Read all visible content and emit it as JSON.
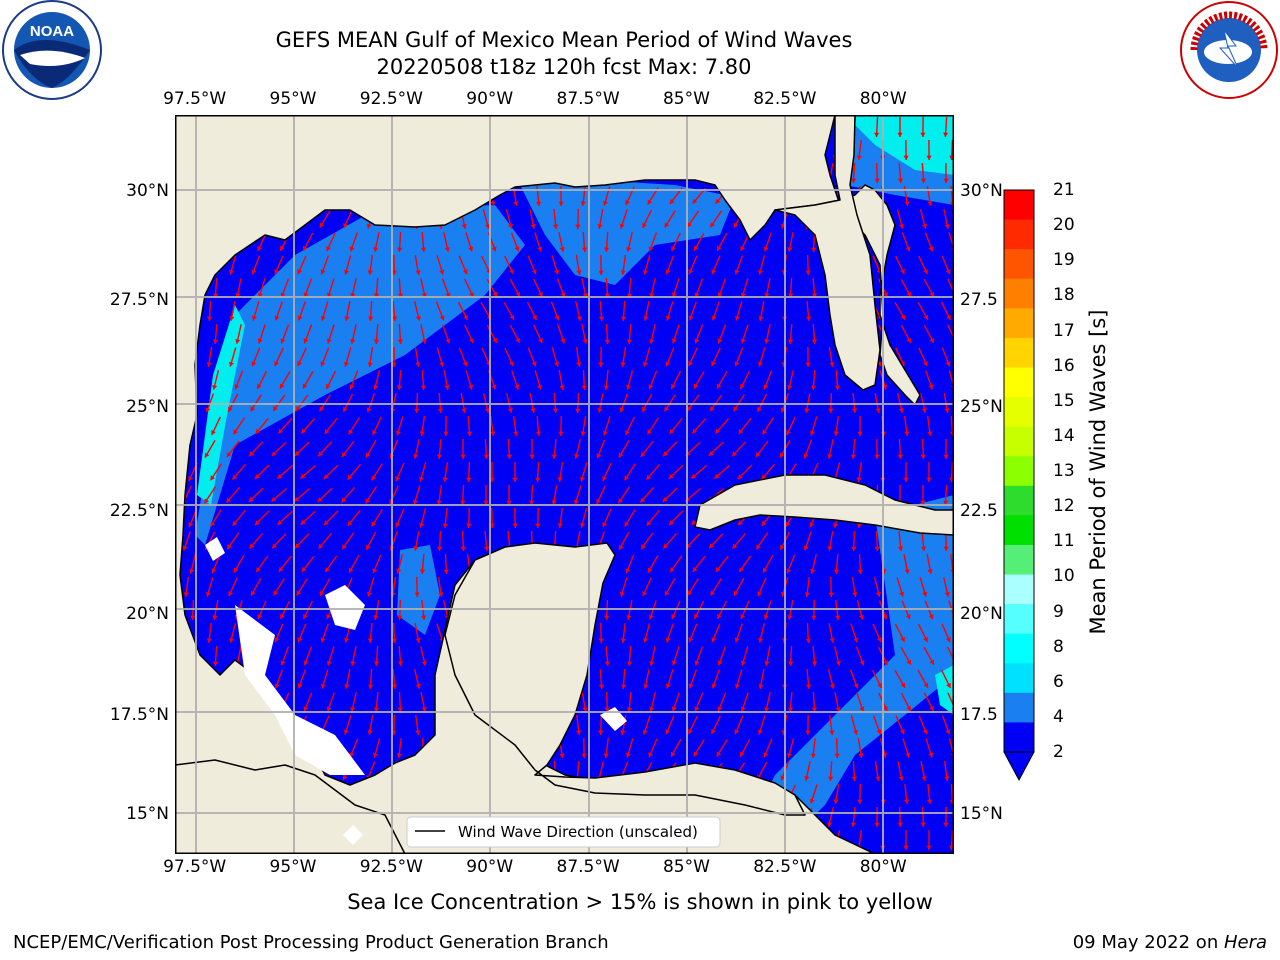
{
  "title": {
    "line1": "GEFS MEAN Gulf of Mexico Mean Period of Wind Waves",
    "line2": "20220508 t18z 120h fcst   Max: 7.80"
  },
  "map": {
    "lon_labels": [
      "97.5°W",
      "95°W",
      "92.5°W",
      "90°W",
      "87.5°W",
      "85°W",
      "82.5°W",
      "80°W"
    ],
    "lon_values": [
      -97.5,
      -95,
      -92.5,
      -90,
      -87.5,
      -85,
      -82.5,
      -80
    ],
    "lat_labels_left": [
      "30°N",
      "27.5°N",
      "25°N",
      "22.5°N",
      "20°N",
      "17.5°N",
      "15°N"
    ],
    "lat_labels_right": [
      "30°N",
      "27.5",
      "25°N",
      "22.5",
      "20°N",
      "17.5",
      "15°N"
    ],
    "lat_values": [
      30,
      27.5,
      25,
      22.5,
      20,
      17.5,
      15
    ],
    "extent": {
      "lon_min": -98,
      "lon_max": -78.2,
      "lat_min": 14,
      "lat_max": 31.7
    },
    "legend_label": "Wind Wave Direction (unscaled)",
    "colors": {
      "land": "#efecdc",
      "ocean_2_4": "#0000f5",
      "ocean_4_6": "#1a7ff0",
      "ocean_6_8": "#00eeee",
      "arrow": "#ff0000"
    }
  },
  "colorbar": {
    "label": "Mean Period of Wind Waves [s]",
    "ticks": [
      "21",
      "20",
      "19",
      "18",
      "17",
      "16",
      "15",
      "14",
      "13",
      "12",
      "11",
      "10",
      "9",
      "8",
      "6",
      "4",
      "2"
    ],
    "colors": [
      "#ff0000",
      "#ff2a00",
      "#ff5500",
      "#ff8000",
      "#ffaa00",
      "#ffd400",
      "#ffff00",
      "#e6ff00",
      "#c8ff00",
      "#8cff00",
      "#2ddc2d",
      "#00e000",
      "#55ee77",
      "#aaffff",
      "#55ffff",
      "#00ffff",
      "#00e0ff",
      "#1a7ff0",
      "#0000f5"
    ],
    "extend_color": "#0000f5"
  },
  "note": "Sea Ice Concentration > 15% is shown in pink to yellow",
  "footer": {
    "left": "NCEP/EMC/Verification Post Processing Product Generation Branch",
    "date": "09 May 2022",
    "on": " on ",
    "machine": "Hera"
  },
  "logos": {
    "left_text": "NOAA",
    "right_text": "NATIONAL WEATHER SERVICE"
  }
}
